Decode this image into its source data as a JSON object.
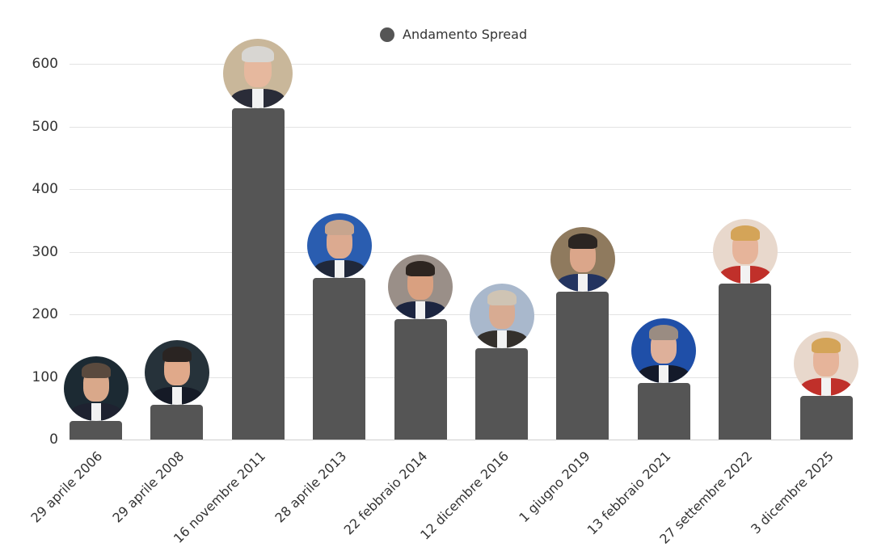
{
  "legend": {
    "label": "Andamento Spread",
    "color": "#555555"
  },
  "axis": {
    "y_ticks": [
      "0",
      "100",
      "200",
      "300",
      "400",
      "500",
      "600"
    ]
  },
  "bars": [
    {
      "label": "29 aprile 2006",
      "value": 30,
      "person_icon": "prodi-portrait",
      "bg": "#1c2a33",
      "face": "#d9a88a",
      "hair": "#5a4a3e",
      "suit": "#1e2230"
    },
    {
      "label": "29 aprile 2008",
      "value": 55,
      "person_icon": "berlusconi-portrait",
      "bg": "#26323a",
      "face": "#e0a98a",
      "hair": "#2a2422",
      "suit": "#151a26"
    },
    {
      "label": "16 novembre 2011",
      "value": 529,
      "person_icon": "monti-portrait",
      "bg": "#c9b79a",
      "face": "#e6b89e",
      "hair": "#d8d6d2",
      "suit": "#2a2c38"
    },
    {
      "label": "28 aprile 2013",
      "value": 258,
      "person_icon": "letta-portrait",
      "bg": "#2a5db0",
      "face": "#dcaa90",
      "hair": "#c7a58e",
      "suit": "#20283a"
    },
    {
      "label": "22 febbraio 2014",
      "value": 192,
      "person_icon": "renzi-portrait",
      "bg": "#9a8f88",
      "face": "#d9a080",
      "hair": "#2d2520",
      "suit": "#1c2540"
    },
    {
      "label": "12 dicembre 2016",
      "value": 146,
      "person_icon": "gentiloni-portrait",
      "bg": "#a9b8cc",
      "face": "#d8ab92",
      "hair": "#cfc4b4",
      "suit": "#34302c"
    },
    {
      "label": "1 giugno 2019",
      "value": 236,
      "person_icon": "conte-portrait",
      "bg": "#8f7a5e",
      "face": "#dba68a",
      "hair": "#2b2522",
      "suit": "#233460"
    },
    {
      "label": "13 febbraio 2021",
      "value": 90,
      "person_icon": "draghi-portrait",
      "bg": "#1f4fa8",
      "face": "#deb09a",
      "hair": "#9a8c82",
      "suit": "#141a2a"
    },
    {
      "label": "27 settembre 2022",
      "value": 249,
      "person_icon": "meloni-portrait",
      "bg": "#e8d8cc",
      "face": "#e6b49a",
      "hair": "#d4a458",
      "suit": "#c0302a"
    },
    {
      "label": "3 dicembre 2025",
      "value": 70,
      "person_icon": "meloni-portrait",
      "bg": "#e8d8cc",
      "face": "#e6b49a",
      "hair": "#d4a458",
      "suit": "#c0302a"
    }
  ],
  "chart_data": {
    "type": "bar",
    "title": "",
    "xlabel": "",
    "ylabel": "",
    "categories": [
      "29 aprile 2006",
      "29 aprile 2008",
      "16 novembre 2011",
      "28 aprile 2013",
      "22 febbraio 2014",
      "12 dicembre 2016",
      "1 giugno 2019",
      "13 febbraio 2021",
      "27 settembre 2022",
      "3 dicembre 2025"
    ],
    "series": [
      {
        "name": "Andamento Spread",
        "values": [
          30,
          55,
          529,
          258,
          192,
          146,
          236,
          90,
          249,
          70
        ],
        "color": "#555555"
      }
    ],
    "ylim": [
      0,
      600
    ],
    "yticks": [
      0,
      100,
      200,
      300,
      400,
      500,
      600
    ],
    "grid": true,
    "legend_position": "top-center",
    "annotations": "Circular portrait photo of the head of government above each bar"
  }
}
